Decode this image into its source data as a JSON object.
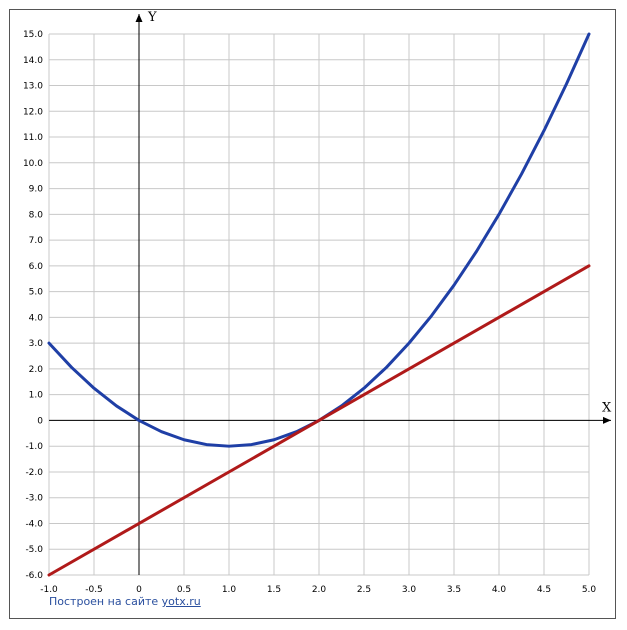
{
  "chart_data": {
    "type": "line",
    "x_axis_label": "X",
    "y_axis_label": "Y",
    "xlim": [
      -1.0,
      5.0
    ],
    "ylim": [
      -6.0,
      15.0
    ],
    "x_ticks": [
      "-1.0",
      "-0.5",
      "0",
      "0.5",
      "1.0",
      "1.5",
      "2.0",
      "2.5",
      "3.0",
      "3.5",
      "4.0",
      "4.5",
      "5.0"
    ],
    "y_ticks": [
      "15.0",
      "14.0",
      "13.0",
      "12.0",
      "11.0",
      "10.0",
      "9.0",
      "8.0",
      "7.0",
      "6.0",
      "5.0",
      "4.0",
      "3.0",
      "2.0",
      "1.0",
      "0",
      "-1.0",
      "-2.0",
      "-3.0",
      "-4.0",
      "-5.0",
      "-6.0"
    ],
    "grid": true,
    "series": [
      {
        "color": "#1f3fa6",
        "x": [
          -1.0,
          -0.75,
          -0.5,
          -0.25,
          0,
          0.25,
          0.5,
          0.75,
          1.0,
          1.25,
          1.5,
          1.75,
          2.0,
          2.25,
          2.5,
          2.75,
          3.0,
          3.25,
          3.5,
          3.75,
          4.0,
          4.25,
          4.5,
          4.75,
          5.0
        ],
        "y": [
          3.0,
          2.0625,
          1.25,
          0.5625,
          0,
          -0.4375,
          -0.75,
          -0.9375,
          -1.0,
          -0.9375,
          -0.75,
          -0.4375,
          0,
          0.5625,
          1.25,
          2.0625,
          3.0,
          4.0625,
          5.25,
          6.5625,
          8.0,
          9.5625,
          11.25,
          13.0625,
          15.0
        ]
      },
      {
        "color": "#b01a1a",
        "x": [
          -1.0,
          5.0
        ],
        "y": [
          -6.0,
          6.0
        ]
      }
    ]
  },
  "footer": {
    "credit_text": "Построен на сайте ",
    "credit_link": "yotx.ru"
  }
}
